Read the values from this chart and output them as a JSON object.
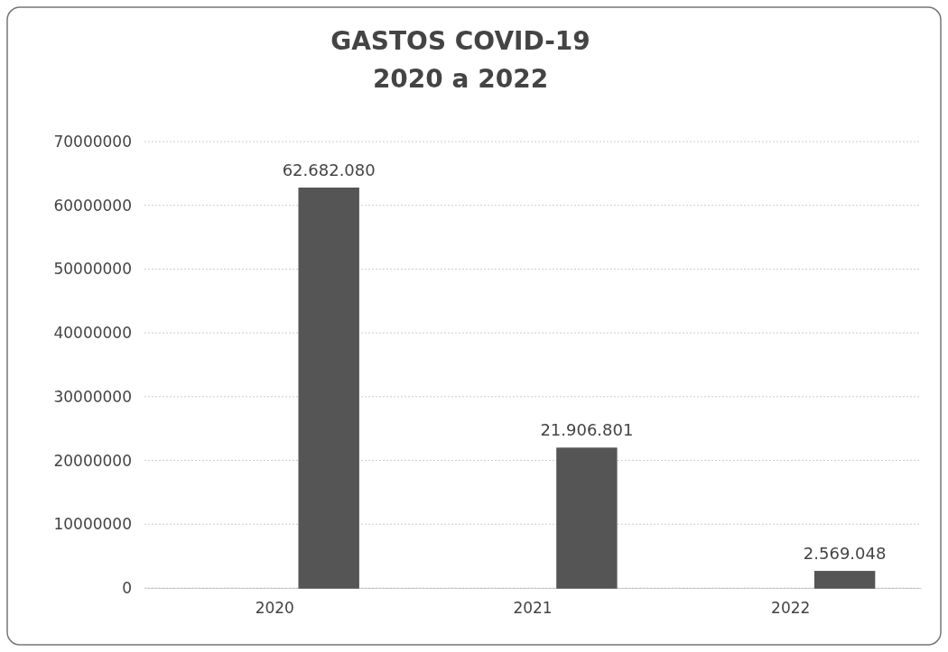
{
  "chart_data": {
    "type": "bar",
    "title": "GASTOS COVID-19\n2020 a 2022",
    "categories": [
      "2020",
      "2021",
      "2022"
    ],
    "series": [
      {
        "color": "#555555",
        "values": [
          0,
          0,
          0
        ]
      },
      {
        "color": "#555555",
        "values": [
          62682080,
          21906801,
          2569048
        ],
        "value_labels": [
          "62.682.080",
          "21.906.801",
          "2.569.048"
        ]
      }
    ],
    "ylim": [
      0,
      70000000
    ],
    "yticks": [
      0,
      10000000,
      20000000,
      30000000,
      40000000,
      50000000,
      60000000,
      70000000
    ],
    "grid": "y"
  }
}
